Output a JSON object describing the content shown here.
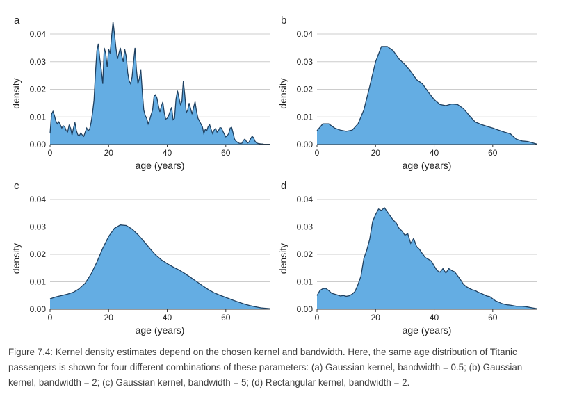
{
  "colors": {
    "fill": "#64ade3",
    "stroke": "#1f4060",
    "grid": "#cccccc",
    "text": "#222222"
  },
  "caption": "Figure 7.4: Kernel density estimates depend on the chosen kernel and bandwidth. Here, the same age distribution of Titanic passengers is shown for four different combinations of these parameters: (a) Gaussian kernel, bandwidth = 0.5; (b) Gaussian kernel, bandwidth = 2; (c) Gaussian kernel, bandwidth = 5; (d) Rectangular kernel, bandwidth = 2.",
  "chart_data": [
    {
      "type": "area",
      "panel_label": "a",
      "xlabel": "age (years)",
      "ylabel": "density",
      "xlim": [
        0,
        75
      ],
      "ylim": [
        0,
        0.04
      ],
      "x_ticks": [
        "0",
        "20",
        "40",
        "60"
      ],
      "y_ticks": [
        "0.00",
        "0.01",
        "0.02",
        "0.03",
        "0.04"
      ],
      "grid": true,
      "x": [
        0,
        0.5,
        1,
        1.5,
        2,
        2.5,
        3,
        3.5,
        4,
        4.5,
        5,
        5.5,
        6,
        6.5,
        7,
        7.5,
        8,
        8.5,
        9,
        9.5,
        10,
        10.5,
        11,
        11.5,
        12,
        12.5,
        13,
        13.5,
        14,
        14.5,
        15,
        15.5,
        16,
        16.5,
        17,
        17.5,
        18,
        18.5,
        19,
        19.5,
        20,
        20.5,
        21,
        21.5,
        22,
        22.5,
        23,
        23.5,
        24,
        24.5,
        25,
        25.5,
        26,
        26.5,
        27,
        27.5,
        28,
        28.5,
        29,
        29.5,
        30,
        30.5,
        31,
        31.5,
        32,
        32.5,
        33,
        33.5,
        34,
        34.5,
        35,
        35.5,
        36,
        36.5,
        37,
        37.5,
        38,
        38.5,
        39,
        39.5,
        40,
        40.5,
        41,
        41.5,
        42,
        42.5,
        43,
        43.5,
        44,
        44.5,
        45,
        45.5,
        46,
        46.5,
        47,
        47.5,
        48,
        48.5,
        49,
        49.5,
        50,
        50.5,
        51,
        51.5,
        52,
        52.5,
        53,
        53.5,
        54,
        54.5,
        55,
        55.5,
        56,
        56.5,
        57,
        57.5,
        58,
        58.5,
        59,
        59.5,
        60,
        60.5,
        61,
        61.5,
        62,
        62.5,
        63,
        63.5,
        64,
        64.5,
        65,
        65.5,
        66,
        66.5,
        67,
        67.5,
        68,
        68.5,
        69,
        69.5,
        70,
        70.5,
        71,
        71.5,
        72,
        72.5,
        73,
        73.5,
        74,
        74.5,
        75
      ],
      "y": [
        0.004,
        0.011,
        0.012,
        0.0105,
        0.0085,
        0.0075,
        0.0082,
        0.0072,
        0.006,
        0.0068,
        0.0065,
        0.005,
        0.0046,
        0.007,
        0.006,
        0.0035,
        0.006,
        0.008,
        0.005,
        0.0035,
        0.0032,
        0.0042,
        0.0035,
        0.003,
        0.0045,
        0.006,
        0.005,
        0.0055,
        0.008,
        0.0115,
        0.016,
        0.026,
        0.034,
        0.0365,
        0.031,
        0.027,
        0.022,
        0.035,
        0.033,
        0.028,
        0.0345,
        0.033,
        0.039,
        0.0445,
        0.04,
        0.035,
        0.031,
        0.033,
        0.035,
        0.032,
        0.03,
        0.0345,
        0.032,
        0.026,
        0.023,
        0.022,
        0.0245,
        0.03,
        0.035,
        0.027,
        0.022,
        0.024,
        0.027,
        0.019,
        0.0125,
        0.0105,
        0.0095,
        0.0075,
        0.009,
        0.0108,
        0.0125,
        0.0175,
        0.018,
        0.0168,
        0.014,
        0.0118,
        0.0138,
        0.0154,
        0.0115,
        0.0092,
        0.0095,
        0.0105,
        0.012,
        0.0135,
        0.009,
        0.0095,
        0.0165,
        0.0195,
        0.017,
        0.0145,
        0.0155,
        0.023,
        0.018,
        0.0115,
        0.0125,
        0.015,
        0.013,
        0.011,
        0.0135,
        0.0155,
        0.012,
        0.0095,
        0.0085,
        0.0075,
        0.0065,
        0.004,
        0.0055,
        0.005,
        0.0065,
        0.0072,
        0.0055,
        0.004,
        0.0052,
        0.0058,
        0.0045,
        0.005,
        0.0062,
        0.006,
        0.0048,
        0.0038,
        0.0028,
        0.0032,
        0.004,
        0.006,
        0.0062,
        0.0042,
        0.002,
        0.0012,
        0.0008,
        0.0005,
        0.0004,
        0.0005,
        0.0015,
        0.002,
        0.0012,
        0.0006,
        0.001,
        0.0022,
        0.003,
        0.0025,
        0.0012,
        0.0006,
        0.0004,
        0.0003,
        0.0002,
        0.0002,
        0.0001,
        0.0001,
        0.0001,
        0.0001,
        0.0001
      ]
    },
    {
      "type": "area",
      "panel_label": "b",
      "xlabel": "age (years)",
      "ylabel": "density",
      "xlim": [
        0,
        75
      ],
      "ylim": [
        0,
        0.04
      ],
      "x_ticks": [
        "0",
        "20",
        "40",
        "60"
      ],
      "y_ticks": [
        "0.00",
        "0.01",
        "0.02",
        "0.03",
        "0.04"
      ],
      "grid": true,
      "x": [
        0,
        2,
        4,
        6,
        8,
        10,
        12,
        14,
        16,
        18,
        20,
        22,
        24,
        26,
        28,
        30,
        32,
        34,
        36,
        38,
        40,
        42,
        44,
        46,
        48,
        50,
        52,
        54,
        56,
        58,
        60,
        62,
        64,
        66,
        68,
        70,
        72,
        75
      ],
      "y": [
        0.005,
        0.0075,
        0.0075,
        0.006,
        0.0052,
        0.0048,
        0.0052,
        0.0075,
        0.0125,
        0.021,
        0.03,
        0.0355,
        0.0355,
        0.034,
        0.031,
        0.029,
        0.0265,
        0.0235,
        0.022,
        0.019,
        0.0163,
        0.0145,
        0.0141,
        0.0147,
        0.0145,
        0.013,
        0.0105,
        0.0082,
        0.0073,
        0.0066,
        0.006,
        0.0052,
        0.0045,
        0.0039,
        0.002,
        0.0013,
        0.0011,
        0.0002
      ]
    },
    {
      "type": "area",
      "panel_label": "c",
      "xlabel": "age (years)",
      "ylabel": "density",
      "xlim": [
        0,
        75
      ],
      "ylim": [
        0,
        0.04
      ],
      "x_ticks": [
        "0",
        "20",
        "40",
        "60"
      ],
      "y_ticks": [
        "0.00",
        "0.01",
        "0.02",
        "0.03",
        "0.04"
      ],
      "grid": true,
      "x": [
        0,
        2,
        4,
        6,
        8,
        10,
        12,
        14,
        16,
        18,
        20,
        22,
        24,
        26,
        28,
        30,
        32,
        34,
        36,
        38,
        40,
        42,
        44,
        46,
        48,
        50,
        52,
        54,
        56,
        58,
        60,
        62,
        64,
        66,
        68,
        70,
        72,
        75
      ],
      "y": [
        0.0038,
        0.0045,
        0.005,
        0.0055,
        0.0062,
        0.0075,
        0.0095,
        0.0128,
        0.0172,
        0.0222,
        0.0265,
        0.0295,
        0.0307,
        0.0305,
        0.0292,
        0.0272,
        0.0248,
        0.0222,
        0.0198,
        0.018,
        0.0166,
        0.0154,
        0.0143,
        0.013,
        0.0116,
        0.0101,
        0.0086,
        0.0072,
        0.006,
        0.0051,
        0.0043,
        0.0035,
        0.0027,
        0.002,
        0.0014,
        0.0009,
        0.0005,
        0.0002
      ]
    },
    {
      "type": "area",
      "panel_label": "d",
      "xlabel": "age (years)",
      "ylabel": "density",
      "xlim": [
        0,
        75
      ],
      "ylim": [
        0,
        0.04
      ],
      "x_ticks": [
        "0",
        "20",
        "40",
        "60"
      ],
      "y_ticks": [
        "0.00",
        "0.01",
        "0.02",
        "0.03",
        "0.04"
      ],
      "grid": true,
      "x": [
        0,
        1,
        2,
        3,
        4,
        5,
        6,
        7,
        8,
        9,
        10,
        11,
        12,
        13,
        14,
        15,
        16,
        17,
        18,
        19,
        20,
        21,
        22,
        23,
        24,
        25,
        26,
        27,
        28,
        29,
        30,
        31,
        32,
        33,
        34,
        35,
        36,
        37,
        38,
        39,
        40,
        41,
        42,
        43,
        44,
        45,
        46,
        47,
        48,
        49,
        50,
        51,
        52,
        53,
        54,
        55,
        56,
        57,
        58,
        59,
        60,
        61,
        62,
        63,
        64,
        65,
        66,
        67,
        68,
        69,
        70,
        71,
        72,
        73,
        74,
        75
      ],
      "y": [
        0.005,
        0.0068,
        0.0075,
        0.0076,
        0.0068,
        0.0058,
        0.0055,
        0.0052,
        0.0048,
        0.005,
        0.0047,
        0.0049,
        0.0055,
        0.0065,
        0.009,
        0.012,
        0.0185,
        0.0215,
        0.0255,
        0.032,
        0.0345,
        0.0365,
        0.036,
        0.037,
        0.0355,
        0.034,
        0.0325,
        0.0315,
        0.0295,
        0.0285,
        0.027,
        0.0275,
        0.024,
        0.0258,
        0.0228,
        0.0218,
        0.0202,
        0.0188,
        0.0182,
        0.0176,
        0.0158,
        0.0141,
        0.0135,
        0.0148,
        0.0132,
        0.0148,
        0.0141,
        0.0136,
        0.0122,
        0.0107,
        0.0091,
        0.0082,
        0.0076,
        0.0071,
        0.0068,
        0.0062,
        0.0058,
        0.0053,
        0.0048,
        0.0046,
        0.0038,
        0.003,
        0.0026,
        0.0021,
        0.0018,
        0.0016,
        0.0015,
        0.0013,
        0.0011,
        0.0011,
        0.0011,
        0.001,
        0.0008,
        0.0006,
        0.0004,
        0.0002
      ]
    }
  ]
}
